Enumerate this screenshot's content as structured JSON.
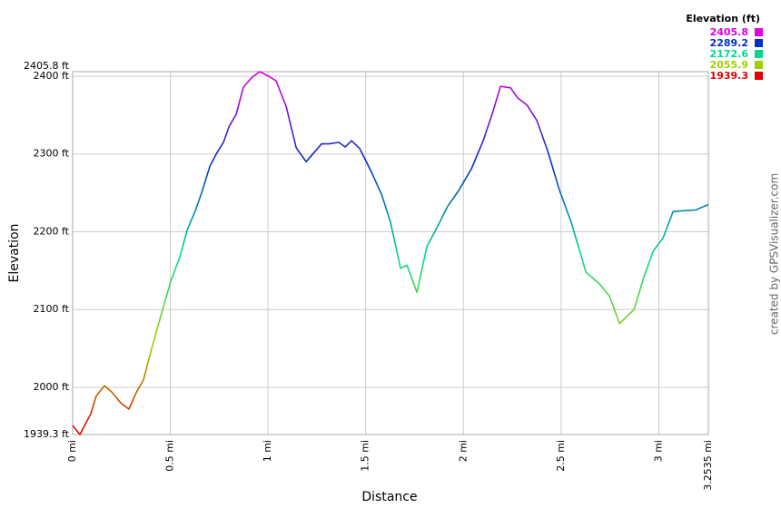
{
  "chart_data": {
    "type": "line",
    "x_label": "Distance",
    "y_label": "Elevation",
    "credit": "created by GPSVisualizer.com",
    "legend_title": "Elevation (ft)",
    "color_scale": [
      {
        "value": 2405.8,
        "color": "#e000e0"
      },
      {
        "value": 2289.2,
        "color": "#0030c8"
      },
      {
        "value": 2172.6,
        "color": "#00d890"
      },
      {
        "value": 2055.9,
        "color": "#a0d000"
      },
      {
        "value": 1939.3,
        "color": "#e00000"
      }
    ],
    "x": [
      0,
      0.037,
      0.093,
      0.121,
      0.163,
      0.2,
      0.246,
      0.288,
      0.325,
      0.363,
      0.409,
      0.456,
      0.502,
      0.549,
      0.586,
      0.628,
      0.66,
      0.702,
      0.735,
      0.772,
      0.8,
      0.837,
      0.874,
      0.92,
      0.958,
      0.995,
      1.041,
      1.093,
      1.144,
      1.195,
      1.274,
      1.311,
      1.362,
      1.395,
      1.427,
      1.469,
      1.525,
      1.581,
      1.627,
      1.678,
      1.711,
      1.762,
      1.813,
      1.864,
      1.92,
      1.976,
      2.041,
      2.101,
      2.148,
      2.19,
      2.241,
      2.278,
      2.325,
      2.376,
      2.431,
      2.492,
      2.552,
      2.627,
      2.696,
      2.748,
      2.799,
      2.873,
      2.924,
      2.971,
      3.022,
      3.073,
      3.124,
      3.189,
      3.2535
    ],
    "values": [
      1951,
      1939.3,
      1966,
      1989,
      2002,
      1994,
      1980,
      1972,
      1993,
      2010,
      2054,
      2096,
      2136,
      2168,
      2202,
      2227,
      2250,
      2284,
      2300,
      2315,
      2335,
      2351,
      2386,
      2399,
      2405.8,
      2401,
      2394,
      2361,
      2308,
      2290,
      2313,
      2313,
      2315,
      2309,
      2317,
      2307,
      2279,
      2248,
      2212,
      2153,
      2157,
      2122,
      2181,
      2205,
      2233,
      2253,
      2281,
      2317,
      2352,
      2387,
      2385,
      2372,
      2363,
      2343,
      2304,
      2253,
      2212,
      2148,
      2133,
      2117,
      2082,
      2100,
      2142,
      2175,
      2192,
      2226,
      2227,
      2228,
      2235
    ],
    "xlim": [
      0,
      3.2535
    ],
    "xticks": [
      {
        "value": 0,
        "label": "0 mi"
      },
      {
        "value": 0.5,
        "label": "0.5 mi"
      },
      {
        "value": 1,
        "label": "1 mi"
      },
      {
        "value": 1.5,
        "label": "1.5 mi"
      },
      {
        "value": 2,
        "label": "2 mi"
      },
      {
        "value": 2.5,
        "label": "2.5 mi"
      },
      {
        "value": 3,
        "label": "3 mi"
      },
      {
        "value": 3.2535,
        "label": "3.2535 mi"
      }
    ],
    "ylim": [
      1939.3,
      2405.8
    ],
    "yticks": [
      {
        "value": 1939.3,
        "label": "1939.3 ft"
      },
      {
        "value": 2000,
        "label": "2000 ft"
      },
      {
        "value": 2100,
        "label": "2100 ft"
      },
      {
        "value": 2200,
        "label": "2200 ft"
      },
      {
        "value": 2300,
        "label": "2300 ft"
      },
      {
        "value": 2400,
        "label": "2400 ft"
      },
      {
        "value": 2405.8,
        "label": "2405.8 ft"
      }
    ],
    "grid": true
  }
}
